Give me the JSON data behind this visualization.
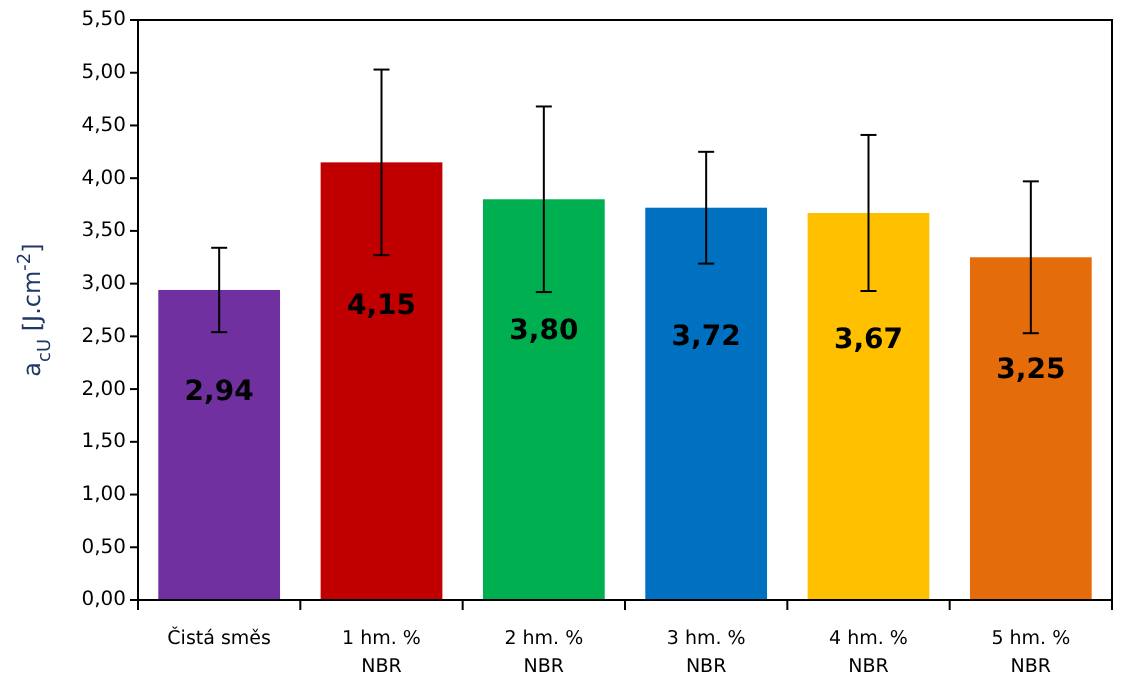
{
  "chart_data": {
    "type": "bar",
    "ylabel": "a$_{cU}$ [J.cm$^{-2}$]",
    "categories": [
      "Čistá směs",
      "1 hm. %\nNBR",
      "2 hm. %\nNBR",
      "3 hm. %\nNBR",
      "4 hm. %\nNBR",
      "5 hm. %\nNBR"
    ],
    "values": [
      2.94,
      4.15,
      3.8,
      3.72,
      3.67,
      3.25
    ],
    "colors": [
      "#7030a0",
      "#c00000",
      "#00b050",
      "#0070c0",
      "#ffc000",
      "#e46c0a"
    ],
    "errors": [
      0.4,
      0.88,
      0.88,
      0.53,
      0.74,
      0.72
    ],
    "value_labels": [
      "2,94",
      "4,15",
      "3,80",
      "3,72",
      "3,67",
      "3,25"
    ],
    "ylim": [
      0,
      5.5
    ],
    "yticks": [
      {
        "value": 0,
        "label": "0,00"
      },
      {
        "value": 0.5,
        "label": "0,50"
      },
      {
        "value": 1,
        "label": "1,00"
      },
      {
        "value": 1.5,
        "label": "1,50"
      },
      {
        "value": 2,
        "label": "2,00"
      },
      {
        "value": 2.5,
        "label": "2,50"
      },
      {
        "value": 3,
        "label": "3,00"
      },
      {
        "value": 3.5,
        "label": "3,50"
      },
      {
        "value": 4,
        "label": "4,00"
      },
      {
        "value": 4.5,
        "label": "4,50"
      },
      {
        "value": 5,
        "label": "5,00"
      },
      {
        "value": 5.5,
        "label": "5,50"
      }
    ],
    "grid": false
  }
}
